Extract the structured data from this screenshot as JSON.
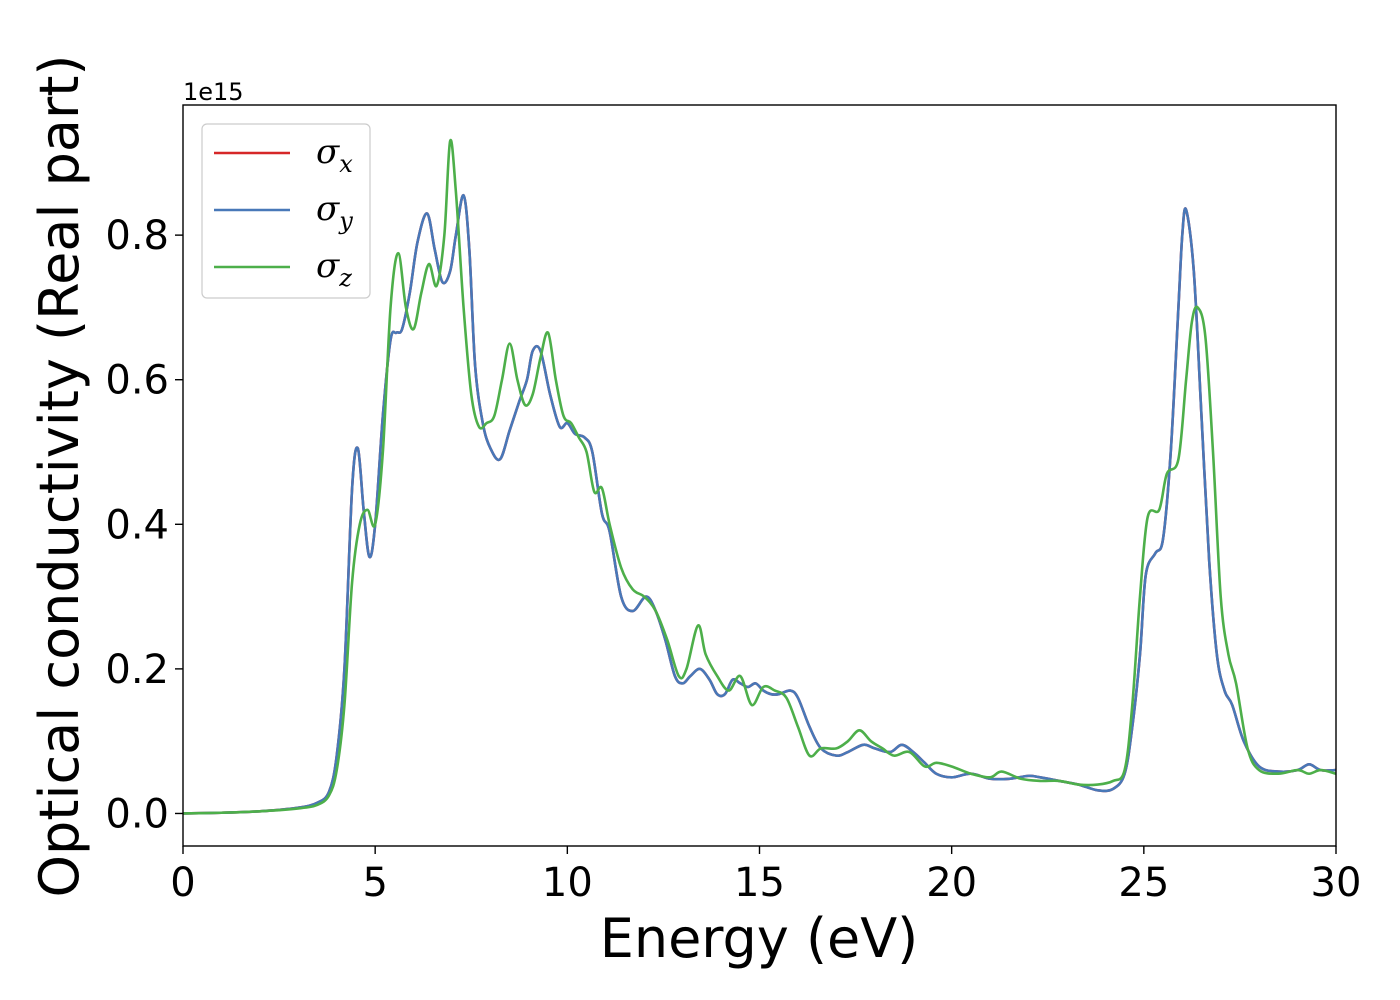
{
  "chart_data": {
    "type": "line",
    "title": "",
    "xlabel": "Energy (eV)",
    "ylabel": "Optical conductivity (Real part)",
    "y_offset_text": "1e15",
    "xlim": [
      0,
      30
    ],
    "ylim": [
      -0.045,
      0.98
    ],
    "xticks": [
      0,
      5,
      10,
      15,
      20,
      25,
      30
    ],
    "xtick_labels": [
      "0",
      "5",
      "10",
      "15",
      "20",
      "25",
      "30"
    ],
    "yticks": [
      0.0,
      0.2,
      0.4,
      0.6,
      0.8
    ],
    "ytick_labels": [
      "0.0",
      "0.2",
      "0.4",
      "0.6",
      "0.8"
    ],
    "grid": false,
    "legend_position": "top-left",
    "series": [
      {
        "name": "σx",
        "legend_symbol": "σ",
        "legend_sub": "x",
        "color": "#d62728",
        "x": [
          0,
          1,
          2,
          3,
          3.5,
          3.8,
          4.0,
          4.2,
          4.4,
          4.55,
          4.7,
          4.85,
          5.0,
          5.2,
          5.4,
          5.55,
          5.7,
          5.9,
          6.1,
          6.35,
          6.55,
          6.75,
          6.95,
          7.1,
          7.3,
          7.45,
          7.6,
          7.8,
          8.0,
          8.25,
          8.5,
          8.75,
          8.95,
          9.1,
          9.3,
          9.55,
          9.8,
          10.0,
          10.2,
          10.45,
          10.65,
          10.9,
          11.1,
          11.4,
          11.7,
          12.05,
          12.3,
          12.55,
          12.8,
          13.0,
          13.2,
          13.45,
          13.7,
          13.9,
          14.1,
          14.3,
          14.5,
          14.7,
          14.9,
          15.1,
          15.3,
          15.5,
          15.8,
          16.0,
          16.3,
          16.6,
          17.0,
          17.3,
          17.7,
          18.0,
          18.4,
          18.7,
          19.0,
          19.3,
          19.6,
          20.0,
          20.5,
          21.0,
          21.5,
          22.0,
          22.3,
          22.8,
          23.3,
          23.8,
          24.2,
          24.5,
          24.7,
          24.9,
          25.05,
          25.3,
          25.5,
          25.7,
          25.9,
          26.0,
          26.1,
          26.3,
          26.5,
          26.7,
          26.9,
          27.1,
          27.3,
          27.6,
          28.0,
          28.5,
          29.0,
          29.3,
          29.6,
          30.0
        ],
        "y": [
          0,
          0.001,
          0.003,
          0.008,
          0.015,
          0.03,
          0.08,
          0.2,
          0.45,
          0.505,
          0.42,
          0.355,
          0.4,
          0.55,
          0.655,
          0.665,
          0.67,
          0.72,
          0.79,
          0.83,
          0.78,
          0.735,
          0.75,
          0.8,
          0.855,
          0.78,
          0.62,
          0.54,
          0.505,
          0.49,
          0.53,
          0.57,
          0.6,
          0.64,
          0.64,
          0.58,
          0.535,
          0.54,
          0.525,
          0.52,
          0.5,
          0.415,
          0.39,
          0.3,
          0.28,
          0.3,
          0.28,
          0.24,
          0.19,
          0.18,
          0.19,
          0.2,
          0.185,
          0.165,
          0.165,
          0.185,
          0.18,
          0.175,
          0.18,
          0.17,
          0.165,
          0.165,
          0.17,
          0.16,
          0.12,
          0.09,
          0.08,
          0.085,
          0.095,
          0.09,
          0.085,
          0.095,
          0.085,
          0.07,
          0.055,
          0.05,
          0.055,
          0.048,
          0.048,
          0.052,
          0.05,
          0.045,
          0.04,
          0.032,
          0.034,
          0.055,
          0.12,
          0.22,
          0.33,
          0.36,
          0.38,
          0.5,
          0.7,
          0.8,
          0.835,
          0.75,
          0.55,
          0.35,
          0.22,
          0.17,
          0.15,
          0.1,
          0.065,
          0.058,
          0.06,
          0.068,
          0.06,
          0.06
        ]
      },
      {
        "name": "σy",
        "legend_symbol": "σ",
        "legend_sub": "y",
        "color": "#4878b8",
        "x": [
          0,
          1,
          2,
          3,
          3.5,
          3.8,
          4.0,
          4.2,
          4.4,
          4.55,
          4.7,
          4.85,
          5.0,
          5.2,
          5.4,
          5.55,
          5.7,
          5.9,
          6.1,
          6.35,
          6.55,
          6.75,
          6.95,
          7.1,
          7.3,
          7.45,
          7.6,
          7.8,
          8.0,
          8.25,
          8.5,
          8.75,
          8.95,
          9.1,
          9.3,
          9.55,
          9.8,
          10.0,
          10.2,
          10.45,
          10.65,
          10.9,
          11.1,
          11.4,
          11.7,
          12.05,
          12.3,
          12.55,
          12.8,
          13.0,
          13.2,
          13.45,
          13.7,
          13.9,
          14.1,
          14.3,
          14.5,
          14.7,
          14.9,
          15.1,
          15.3,
          15.5,
          15.8,
          16.0,
          16.3,
          16.6,
          17.0,
          17.3,
          17.7,
          18.0,
          18.4,
          18.7,
          19.0,
          19.3,
          19.6,
          20.0,
          20.5,
          21.0,
          21.5,
          22.0,
          22.3,
          22.8,
          23.3,
          23.8,
          24.2,
          24.5,
          24.7,
          24.9,
          25.05,
          25.3,
          25.5,
          25.7,
          25.9,
          26.0,
          26.1,
          26.3,
          26.5,
          26.7,
          26.9,
          27.1,
          27.3,
          27.6,
          28.0,
          28.5,
          29.0,
          29.3,
          29.6,
          30.0
        ],
        "y": [
          0,
          0.001,
          0.003,
          0.008,
          0.015,
          0.03,
          0.08,
          0.2,
          0.45,
          0.505,
          0.42,
          0.355,
          0.4,
          0.55,
          0.655,
          0.665,
          0.67,
          0.72,
          0.79,
          0.83,
          0.78,
          0.735,
          0.75,
          0.8,
          0.855,
          0.78,
          0.62,
          0.54,
          0.505,
          0.49,
          0.53,
          0.57,
          0.6,
          0.64,
          0.64,
          0.58,
          0.535,
          0.54,
          0.525,
          0.52,
          0.5,
          0.415,
          0.39,
          0.3,
          0.28,
          0.3,
          0.28,
          0.24,
          0.19,
          0.18,
          0.19,
          0.2,
          0.185,
          0.165,
          0.165,
          0.185,
          0.18,
          0.175,
          0.18,
          0.17,
          0.165,
          0.165,
          0.17,
          0.16,
          0.12,
          0.09,
          0.08,
          0.085,
          0.095,
          0.09,
          0.085,
          0.095,
          0.085,
          0.07,
          0.055,
          0.05,
          0.055,
          0.048,
          0.048,
          0.052,
          0.05,
          0.045,
          0.04,
          0.032,
          0.034,
          0.055,
          0.12,
          0.22,
          0.33,
          0.36,
          0.38,
          0.5,
          0.7,
          0.8,
          0.835,
          0.75,
          0.55,
          0.35,
          0.22,
          0.17,
          0.15,
          0.1,
          0.065,
          0.058,
          0.06,
          0.068,
          0.06,
          0.06
        ]
      },
      {
        "name": "σz",
        "legend_symbol": "σ",
        "legend_sub": "z",
        "color": "#4daf4a",
        "x": [
          0,
          1,
          2,
          3,
          3.5,
          3.8,
          4.0,
          4.2,
          4.4,
          4.6,
          4.8,
          5.0,
          5.2,
          5.4,
          5.6,
          5.8,
          6.0,
          6.2,
          6.4,
          6.6,
          6.8,
          6.95,
          7.1,
          7.3,
          7.5,
          7.7,
          7.9,
          8.1,
          8.3,
          8.5,
          8.7,
          8.9,
          9.1,
          9.3,
          9.5,
          9.7,
          9.9,
          10.1,
          10.3,
          10.5,
          10.7,
          10.9,
          11.1,
          11.4,
          11.7,
          12.0,
          12.3,
          12.6,
          12.9,
          13.1,
          13.4,
          13.6,
          13.9,
          14.2,
          14.5,
          14.8,
          15.1,
          15.4,
          15.7,
          16.0,
          16.3,
          16.6,
          17.0,
          17.3,
          17.6,
          17.9,
          18.2,
          18.5,
          18.9,
          19.3,
          19.6,
          20.0,
          20.5,
          21.0,
          21.3,
          21.8,
          22.3,
          22.8,
          23.3,
          23.8,
          24.2,
          24.5,
          24.7,
          24.9,
          25.1,
          25.4,
          25.6,
          25.9,
          26.1,
          26.25,
          26.4,
          26.6,
          26.8,
          27.0,
          27.2,
          27.4,
          27.7,
          28.0,
          28.5,
          29.0,
          29.3,
          29.6,
          30.0
        ],
        "y": [
          0,
          0.001,
          0.003,
          0.007,
          0.012,
          0.025,
          0.06,
          0.15,
          0.32,
          0.4,
          0.42,
          0.4,
          0.5,
          0.7,
          0.775,
          0.7,
          0.67,
          0.72,
          0.76,
          0.73,
          0.8,
          0.93,
          0.86,
          0.7,
          0.58,
          0.535,
          0.54,
          0.55,
          0.6,
          0.65,
          0.6,
          0.565,
          0.58,
          0.63,
          0.665,
          0.6,
          0.55,
          0.54,
          0.52,
          0.5,
          0.445,
          0.45,
          0.4,
          0.34,
          0.31,
          0.3,
          0.28,
          0.24,
          0.19,
          0.2,
          0.26,
          0.22,
          0.19,
          0.17,
          0.19,
          0.15,
          0.175,
          0.17,
          0.16,
          0.12,
          0.08,
          0.09,
          0.09,
          0.1,
          0.115,
          0.1,
          0.09,
          0.08,
          0.085,
          0.065,
          0.07,
          0.065,
          0.055,
          0.05,
          0.058,
          0.048,
          0.045,
          0.045,
          0.04,
          0.04,
          0.045,
          0.06,
          0.15,
          0.3,
          0.41,
          0.42,
          0.47,
          0.49,
          0.6,
          0.68,
          0.7,
          0.66,
          0.5,
          0.3,
          0.22,
          0.18,
          0.09,
          0.06,
          0.055,
          0.06,
          0.055,
          0.06,
          0.055
        ]
      }
    ]
  }
}
